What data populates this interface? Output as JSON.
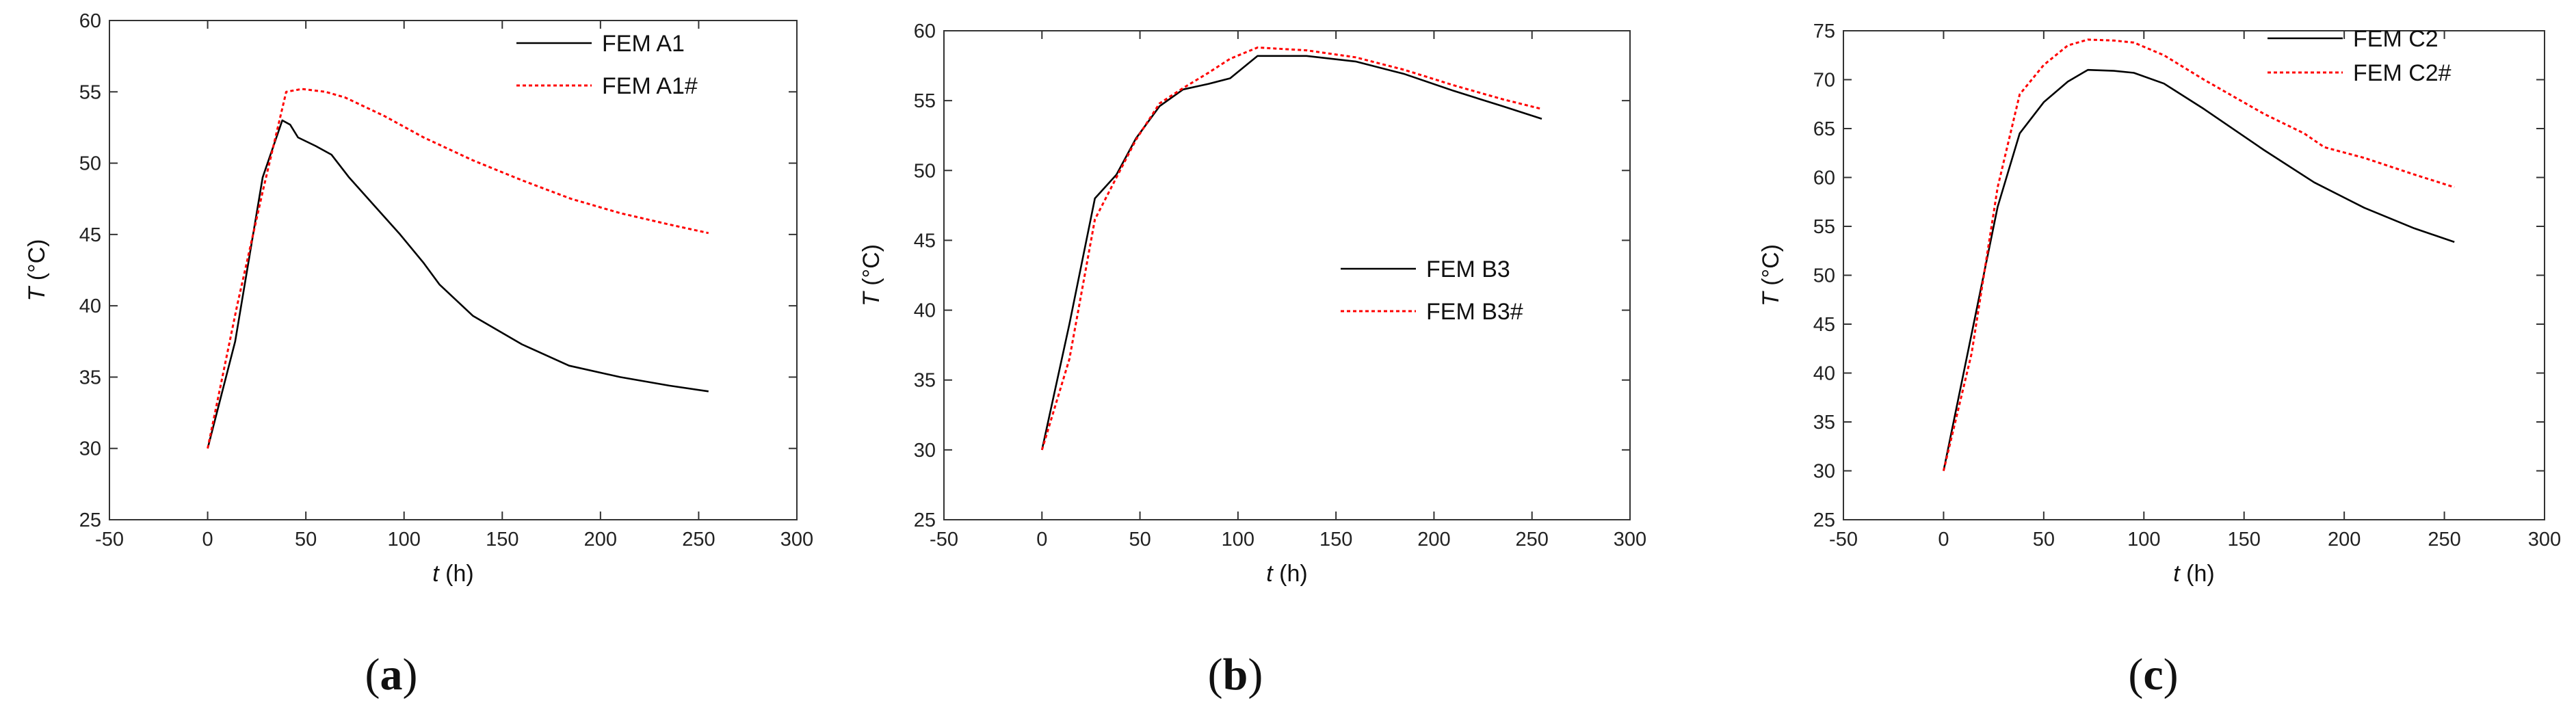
{
  "chart_data": [
    {
      "type": "line",
      "panel": "a",
      "caption": {
        "open": "(",
        "letter": "a",
        "close": ")"
      },
      "xlabel": {
        "var": "t",
        "unit": " (h)"
      },
      "ylabel": {
        "var": "T",
        "unit": " (°C)"
      },
      "xlim": [
        -50,
        300
      ],
      "ylim": [
        25,
        60
      ],
      "xticks": [
        -50,
        0,
        50,
        100,
        150,
        200,
        250,
        300
      ],
      "yticks": [
        25,
        30,
        35,
        40,
        45,
        50,
        55,
        60
      ],
      "legend_position": "top-right",
      "series": [
        {
          "name": "FEM A1",
          "color": "#000000",
          "dash": "solid",
          "x": [
            0,
            14,
            28,
            38,
            42,
            46,
            55,
            63,
            72,
            85,
            98,
            110,
            118,
            135,
            160,
            184,
            210,
            235,
            255
          ],
          "y": [
            30,
            37.5,
            49,
            53,
            52.7,
            51.8,
            51.2,
            50.6,
            49,
            47,
            45,
            43,
            41.5,
            39.3,
            37.3,
            35.8,
            35,
            34.4,
            34
          ]
        },
        {
          "name": "FEM A1#",
          "color": "#ff0000",
          "dash": "dotted",
          "x": [
            0,
            15,
            28,
            40,
            48,
            60,
            70,
            90,
            110,
            135,
            160,
            185,
            210,
            235,
            255
          ],
          "y": [
            30,
            40,
            48,
            55,
            55.2,
            55,
            54.6,
            53.3,
            51.8,
            50.2,
            48.8,
            47.5,
            46.5,
            45.7,
            45.1
          ]
        }
      ]
    },
    {
      "type": "line",
      "panel": "b",
      "caption": {
        "open": "(",
        "letter": "b",
        "close": ")"
      },
      "xlabel": {
        "var": "t",
        "unit": " (h)"
      },
      "ylabel": {
        "var": "T",
        "unit": " (°C)"
      },
      "xlim": [
        -50,
        300
      ],
      "ylim": [
        25,
        60
      ],
      "xticks": [
        -50,
        0,
        50,
        100,
        150,
        200,
        250,
        300
      ],
      "yticks": [
        25,
        30,
        35,
        40,
        45,
        50,
        55,
        60
      ],
      "legend_position": "right",
      "series": [
        {
          "name": "FEM B3",
          "color": "#000000",
          "dash": "solid",
          "x": [
            0,
            14,
            27,
            38,
            48,
            60,
            72,
            85,
            96,
            110,
            135,
            160,
            185,
            210,
            235,
            255
          ],
          "y": [
            30,
            39,
            48,
            49.7,
            52.3,
            54.6,
            55.8,
            56.2,
            56.6,
            58.2,
            58.2,
            57.8,
            56.9,
            55.7,
            54.6,
            53.7
          ]
        },
        {
          "name": "FEM B3#",
          "color": "#ff0000",
          "dash": "dotted",
          "x": [
            0,
            14,
            27,
            38,
            48,
            60,
            72,
            85,
            96,
            110,
            135,
            160,
            185,
            210,
            235,
            255
          ],
          "y": [
            30,
            36.5,
            46.5,
            49.5,
            52.2,
            54.8,
            55.9,
            57,
            58,
            58.8,
            58.6,
            58.1,
            57.2,
            56.1,
            55.1,
            54.4
          ]
        }
      ]
    },
    {
      "type": "line",
      "panel": "c",
      "caption": {
        "open": "(",
        "letter": "c",
        "close": ")"
      },
      "xlabel": {
        "var": "t",
        "unit": " (h)"
      },
      "ylabel": {
        "var": "T",
        "unit": " (°C)"
      },
      "xlim": [
        -50,
        300
      ],
      "ylim": [
        25,
        75
      ],
      "xticks": [
        -50,
        0,
        50,
        100,
        150,
        200,
        250,
        300
      ],
      "yticks": [
        25,
        30,
        35,
        40,
        45,
        50,
        55,
        60,
        65,
        70,
        75
      ],
      "legend_position": "top-right",
      "series": [
        {
          "name": "FEM C2",
          "color": "#000000",
          "dash": "solid",
          "x": [
            0,
            14,
            27,
            38,
            50,
            62,
            72,
            85,
            95,
            110,
            130,
            160,
            185,
            210,
            235,
            255
          ],
          "y": [
            30,
            44,
            57,
            64.5,
            67.7,
            69.8,
            71,
            70.9,
            70.7,
            69.6,
            67,
            62.8,
            59.5,
            56.9,
            54.8,
            53.4
          ]
        },
        {
          "name": "FEM C2#",
          "color": "#ff0000",
          "dash": "dotted",
          "x": [
            0,
            14,
            27,
            38,
            50,
            62,
            72,
            85,
            95,
            110,
            130,
            160,
            180,
            190,
            210,
            235,
            255
          ],
          "y": [
            30,
            42,
            59,
            68.5,
            71.5,
            73.5,
            74.1,
            74,
            73.8,
            72.5,
            70,
            66.5,
            64.5,
            63.1,
            62,
            60.3,
            59
          ]
        }
      ]
    }
  ]
}
